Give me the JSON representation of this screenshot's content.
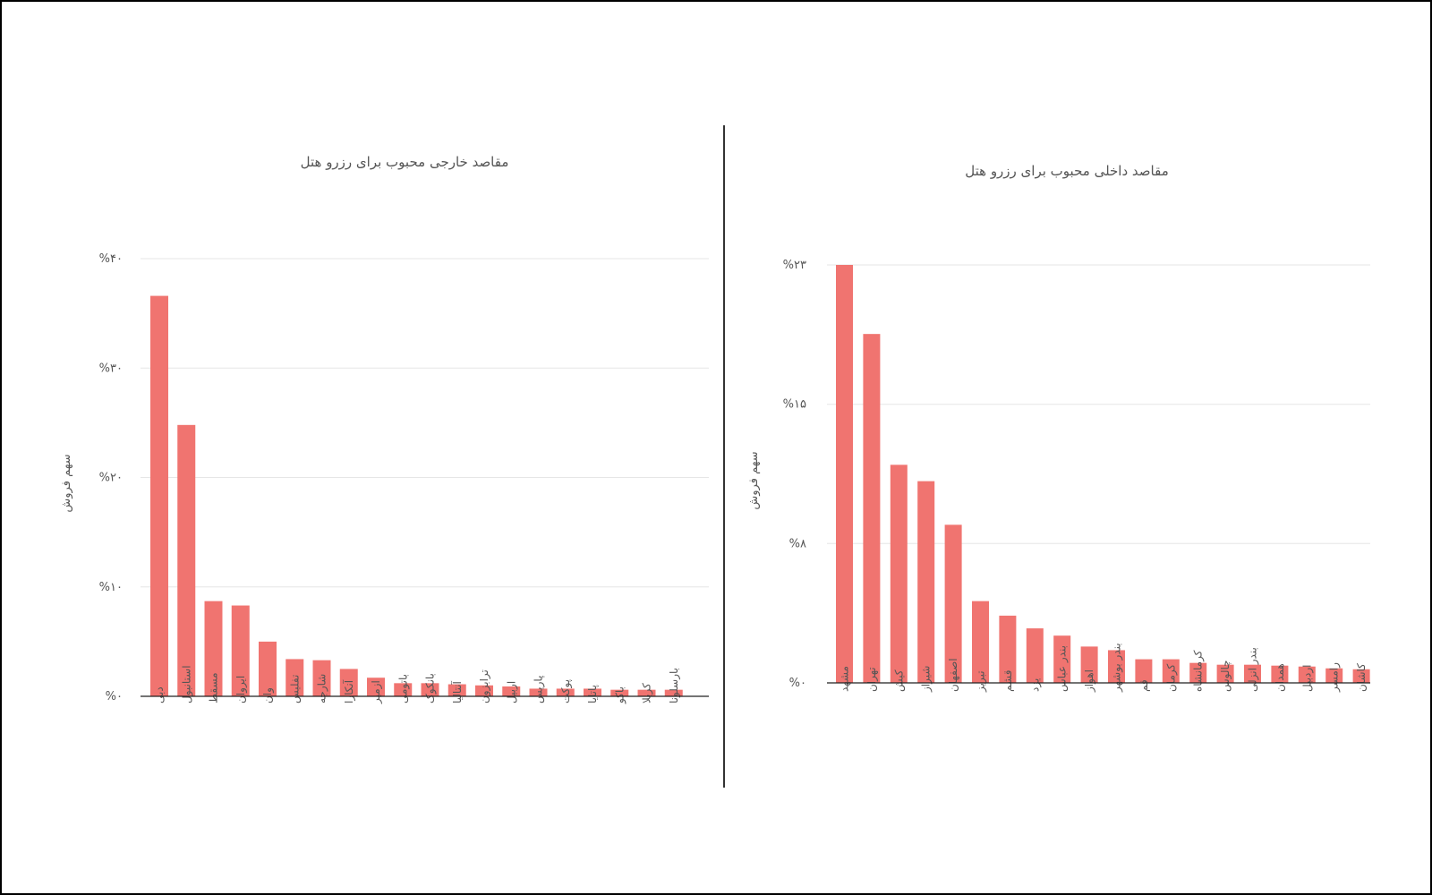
{
  "chart_data": [
    {
      "type": "bar",
      "title": "مقاصد خارجی محبوب برای رزرو هتل",
      "ylabel": "سهم فروش",
      "ylim": [
        0,
        40
      ],
      "ytick_values": [
        0,
        10,
        20,
        30,
        40
      ],
      "ytick_labels": [
        "%۰",
        "%۱۰",
        "%۲۰",
        "%۳۰",
        "%۴۰"
      ],
      "grid": true,
      "categories": [
        "دبی",
        "استانبول",
        "مسقط",
        "ایروان",
        "وان",
        "تفلیس",
        "شارجه",
        "آنکارا",
        "ازمیر",
        "باتومی",
        "بانکوک",
        "آنتالیا",
        "ترابزون",
        "اربیل",
        "پاریس",
        "پوکت",
        "پاتایا",
        "باکو",
        "کربلا",
        "بارسلونا"
      ],
      "values": [
        36.6,
        24.8,
        8.7,
        8.3,
        5.0,
        3.4,
        3.3,
        2.5,
        1.7,
        1.2,
        1.2,
        1.1,
        1.0,
        0.9,
        0.7,
        0.7,
        0.7,
        0.6,
        0.6,
        0.6
      ]
    },
    {
      "type": "bar",
      "title": "مقاصد داخلی محبوب برای رزرو هتل",
      "ylabel": "سهم فروش",
      "ylim": [
        0,
        23
      ],
      "ytick_values": [
        0,
        7.67,
        15.33,
        23
      ],
      "ytick_labels": [
        "%۰",
        "%۸",
        "%۱۵",
        "%۲۳"
      ],
      "grid": true,
      "categories": [
        "مشهد",
        "تهران",
        "کیش",
        "شیراز",
        "اصفهان",
        "تبریز",
        "قشم",
        "یزد",
        "بندر عباس",
        "اهواز",
        "بندر بوشهر",
        "قم",
        "کرمان",
        "کرمانشاه",
        "چالوس",
        "بندر انزلی",
        "همدان",
        "اردبیل",
        "رامسر",
        "کاشان"
      ],
      "values": [
        23.0,
        19.2,
        12.0,
        11.1,
        8.7,
        4.5,
        3.7,
        3.0,
        2.6,
        2.0,
        1.8,
        1.3,
        1.3,
        1.1,
        1.0,
        1.0,
        0.95,
        0.9,
        0.8,
        0.75
      ]
    }
  ]
}
